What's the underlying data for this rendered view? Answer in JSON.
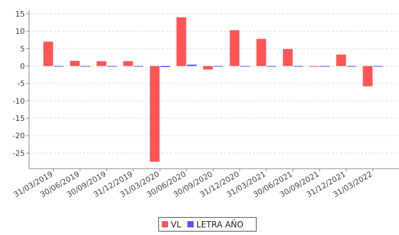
{
  "chart_data": {
    "type": "bar",
    "categories": [
      "31/03/2019",
      "30/06/2019",
      "30/09/2019",
      "31/12/2019",
      "31/03/2020",
      "30/06/2020",
      "30/09/2020",
      "31/12/2020",
      "31/03/2021",
      "30/06/2021",
      "30/09/2021",
      "31/12/2021",
      "31/03/2022"
    ],
    "series": [
      {
        "name": "VL",
        "color": "#ff5555",
        "values": [
          7.0,
          1.5,
          1.4,
          1.4,
          -27.5,
          14.0,
          -1.0,
          10.3,
          7.8,
          4.9,
          -0.1,
          3.3,
          -5.8
        ]
      },
      {
        "name": "LETRA AÑO",
        "color": "#5555ff",
        "values": [
          0.0,
          0.0,
          0.0,
          0.0,
          -0.3,
          0.4,
          0.0,
          0.0,
          -0.2,
          0.0,
          0.0,
          0.0,
          -0.2
        ]
      }
    ],
    "ylim": [
      -29.5,
      16
    ],
    "yticks": [
      15,
      10,
      5,
      0,
      -5,
      -10,
      -15,
      -20,
      -25
    ],
    "grid": true,
    "legend_position": "bottom-center",
    "title": "",
    "xlabel": "",
    "ylabel": ""
  }
}
